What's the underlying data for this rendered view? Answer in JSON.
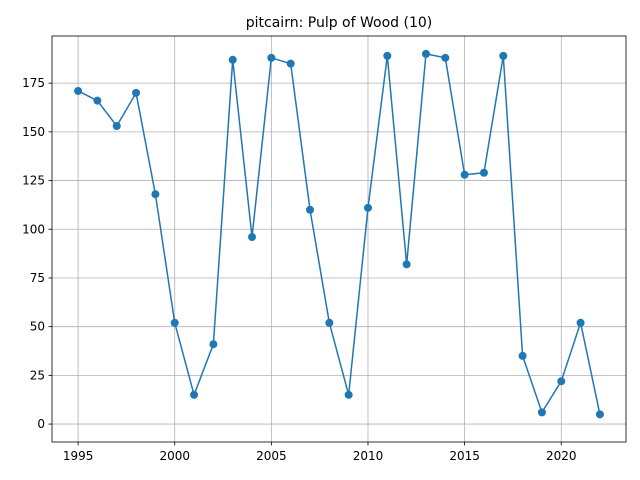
{
  "colors": {
    "series": "#1f77b4",
    "grid": "#b0b0b0",
    "background": "#ffffff"
  },
  "chart_data": {
    "type": "line",
    "title": "pitcairn: Pulp of Wood (10)",
    "xlabel": "",
    "ylabel": "",
    "xlim": [
      1993.65,
      2023.35
    ],
    "ylim": [
      -9.2,
      199.2
    ],
    "x_ticks": [
      1995,
      2000,
      2005,
      2010,
      2015,
      2020
    ],
    "y_ticks": [
      0,
      25,
      50,
      75,
      100,
      125,
      150,
      175
    ],
    "grid": true,
    "marker": "circle",
    "series": [
      {
        "x": [
          1995,
          1996,
          1997,
          1998,
          1999,
          2000,
          2001,
          2002,
          2003,
          2004,
          2005,
          2006,
          2007,
          2008,
          2009,
          2010,
          2011,
          2012,
          2013,
          2014,
          2015,
          2016,
          2017,
          2018,
          2019,
          2020,
          2021,
          2022
        ],
        "values": [
          171,
          166,
          153,
          170,
          118,
          52,
          15,
          41,
          187,
          96,
          188,
          185,
          110,
          52,
          15,
          111,
          189,
          82,
          190,
          188,
          128,
          129,
          189,
          35,
          6,
          22,
          52,
          5
        ]
      }
    ]
  }
}
